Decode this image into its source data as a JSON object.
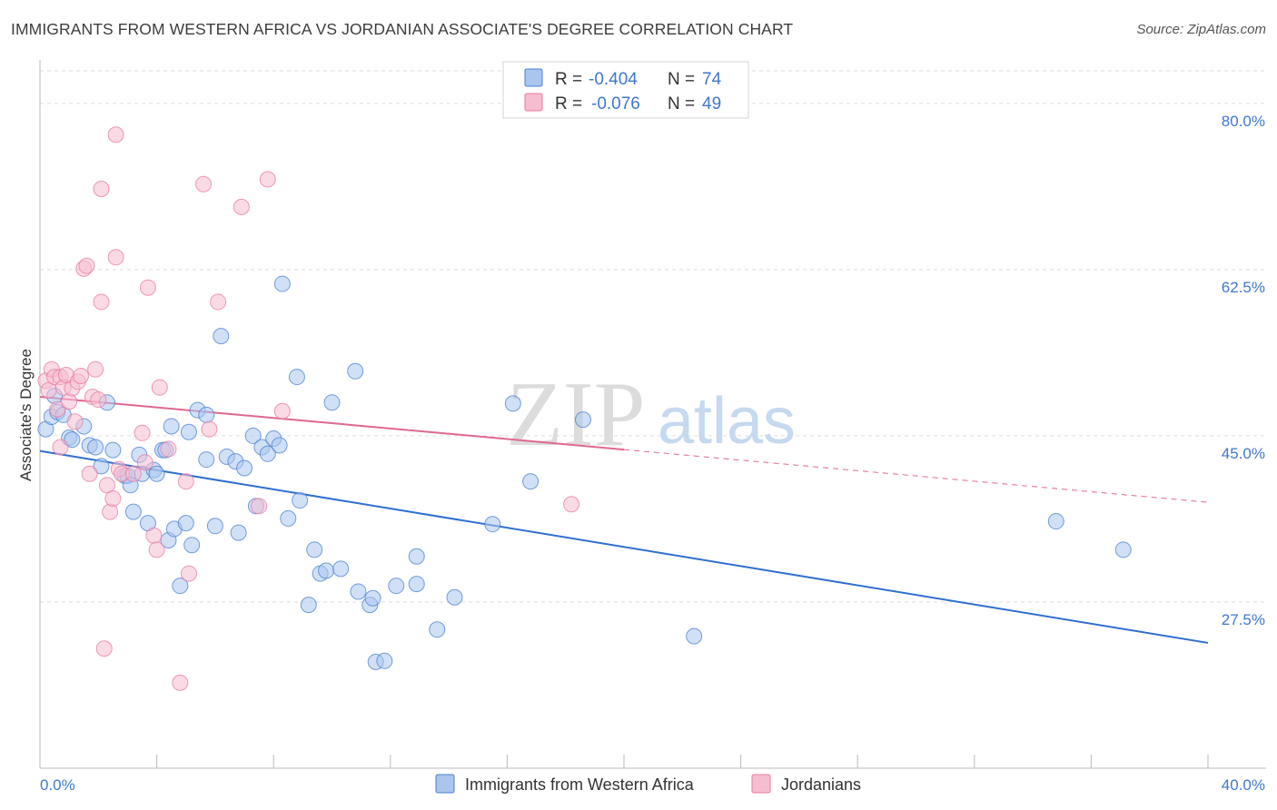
{
  "title": "IMMIGRANTS FROM WESTERN AFRICA VS JORDANIAN ASSOCIATE'S DEGREE CORRELATION CHART",
  "source": "Source: ZipAtlas.com",
  "watermark": {
    "zip": "ZIP",
    "atlas": "atlas"
  },
  "colors": {
    "blue": "#4a7fd4",
    "blue_fill": "#aac6ee",
    "blue_line": "#2f6fd0",
    "pink": "#e87aa0",
    "pink_fill": "#f6bdd0",
    "pink_line": "#e06890",
    "axis_label": "#3f78c9",
    "grid": "#dddddd"
  },
  "stats": {
    "r_label": "R =",
    "n_label": "N =",
    "blue": {
      "r": "-0.404",
      "n": "74"
    },
    "pink": {
      "r": "-0.076",
      "n": "49"
    }
  },
  "chart_data": {
    "type": "scatter",
    "xlabel": "",
    "ylabel": "Associate's Degree",
    "xlim": [
      0,
      40
    ],
    "ylim": [
      10,
      84
    ],
    "x_tick_labels": [
      "0.0%",
      "40.0%"
    ],
    "y_ticks": [
      27.5,
      45.0,
      62.5,
      80.0
    ],
    "y_tick_labels": [
      "27.5%",
      "45.0%",
      "62.5%",
      "80.0%"
    ],
    "series": [
      {
        "name": "Immigrants from Western Africa",
        "color": "blue",
        "trend": {
          "x0": 0,
          "y0": 43.4,
          "x1": 40,
          "y1": 23.2,
          "dashed_after": null
        },
        "points": [
          [
            0.2,
            45.7
          ],
          [
            0.4,
            47.0
          ],
          [
            0.5,
            49.2
          ],
          [
            0.6,
            47.5
          ],
          [
            0.8,
            47.2
          ],
          [
            1.0,
            44.8
          ],
          [
            1.1,
            44.6
          ],
          [
            1.5,
            46.0
          ],
          [
            1.7,
            44.0
          ],
          [
            1.9,
            43.8
          ],
          [
            2.1,
            41.8
          ],
          [
            2.3,
            48.5
          ],
          [
            2.5,
            43.5
          ],
          [
            2.9,
            40.8
          ],
          [
            3.0,
            40.8
          ],
          [
            3.1,
            39.8
          ],
          [
            3.2,
            37.0
          ],
          [
            3.4,
            43.0
          ],
          [
            3.5,
            41.0
          ],
          [
            3.7,
            35.8
          ],
          [
            3.9,
            41.4
          ],
          [
            4.0,
            41.0
          ],
          [
            4.2,
            43.5
          ],
          [
            4.3,
            43.5
          ],
          [
            4.4,
            34.0
          ],
          [
            4.5,
            46.0
          ],
          [
            4.6,
            35.2
          ],
          [
            4.8,
            29.2
          ],
          [
            5.0,
            35.8
          ],
          [
            5.1,
            45.4
          ],
          [
            5.2,
            33.5
          ],
          [
            5.4,
            47.7
          ],
          [
            5.7,
            47.2
          ],
          [
            5.7,
            42.5
          ],
          [
            6.0,
            35.5
          ],
          [
            6.2,
            55.5
          ],
          [
            6.4,
            42.8
          ],
          [
            6.7,
            42.3
          ],
          [
            6.8,
            34.8
          ],
          [
            7.0,
            41.6
          ],
          [
            7.3,
            45.0
          ],
          [
            7.4,
            37.6
          ],
          [
            7.6,
            43.8
          ],
          [
            7.8,
            43.1
          ],
          [
            8.0,
            44.7
          ],
          [
            8.2,
            44.0
          ],
          [
            8.3,
            61.0
          ],
          [
            8.5,
            36.3
          ],
          [
            8.8,
            51.2
          ],
          [
            8.9,
            38.2
          ],
          [
            9.2,
            27.2
          ],
          [
            9.4,
            33.0
          ],
          [
            9.6,
            30.5
          ],
          [
            9.8,
            30.8
          ],
          [
            10.0,
            48.5
          ],
          [
            10.3,
            31.0
          ],
          [
            10.8,
            51.8
          ],
          [
            10.9,
            28.6
          ],
          [
            11.3,
            27.2
          ],
          [
            11.4,
            27.9
          ],
          [
            11.5,
            21.2
          ],
          [
            11.8,
            21.3
          ],
          [
            12.2,
            29.2
          ],
          [
            12.9,
            29.4
          ],
          [
            12.9,
            32.3
          ],
          [
            13.6,
            24.6
          ],
          [
            14.2,
            28.0
          ],
          [
            15.5,
            35.7
          ],
          [
            16.2,
            48.4
          ],
          [
            16.8,
            40.2
          ],
          [
            18.6,
            46.7
          ],
          [
            22.4,
            23.9
          ],
          [
            34.8,
            36.0
          ],
          [
            37.1,
            33.0
          ]
        ]
      },
      {
        "name": "Jordanians",
        "color": "pink",
        "trend": {
          "x0": 0,
          "y0": 49.1,
          "x1": 40,
          "y1": 38.0,
          "dashed_after": 20.0
        },
        "points": [
          [
            0.2,
            50.8
          ],
          [
            0.3,
            49.8
          ],
          [
            0.4,
            52.0
          ],
          [
            0.5,
            51.2
          ],
          [
            0.6,
            47.8
          ],
          [
            0.7,
            43.8
          ],
          [
            0.7,
            51.2
          ],
          [
            0.8,
            50.1
          ],
          [
            0.9,
            51.4
          ],
          [
            1.0,
            48.6
          ],
          [
            1.1,
            50.0
          ],
          [
            1.2,
            46.5
          ],
          [
            1.3,
            50.7
          ],
          [
            1.4,
            51.3
          ],
          [
            1.5,
            62.6
          ],
          [
            1.6,
            62.9
          ],
          [
            1.7,
            41.0
          ],
          [
            1.8,
            49.1
          ],
          [
            1.9,
            52.0
          ],
          [
            2.0,
            48.8
          ],
          [
            2.1,
            59.1
          ],
          [
            2.1,
            71.0
          ],
          [
            2.2,
            22.6
          ],
          [
            2.3,
            39.8
          ],
          [
            2.4,
            37.0
          ],
          [
            2.5,
            38.4
          ],
          [
            2.6,
            63.8
          ],
          [
            2.6,
            76.7
          ],
          [
            2.7,
            41.5
          ],
          [
            2.8,
            41.0
          ],
          [
            3.2,
            41.0
          ],
          [
            3.5,
            45.3
          ],
          [
            3.6,
            42.2
          ],
          [
            3.7,
            60.6
          ],
          [
            3.9,
            34.5
          ],
          [
            4.0,
            33.0
          ],
          [
            4.1,
            50.1
          ],
          [
            4.4,
            43.6
          ],
          [
            4.8,
            19.0
          ],
          [
            5.0,
            40.2
          ],
          [
            5.1,
            30.5
          ],
          [
            5.6,
            71.5
          ],
          [
            5.8,
            45.7
          ],
          [
            6.1,
            59.1
          ],
          [
            6.9,
            69.1
          ],
          [
            7.5,
            37.6
          ],
          [
            7.8,
            72.0
          ],
          [
            8.3,
            47.6
          ],
          [
            18.2,
            37.8
          ]
        ]
      }
    ]
  }
}
